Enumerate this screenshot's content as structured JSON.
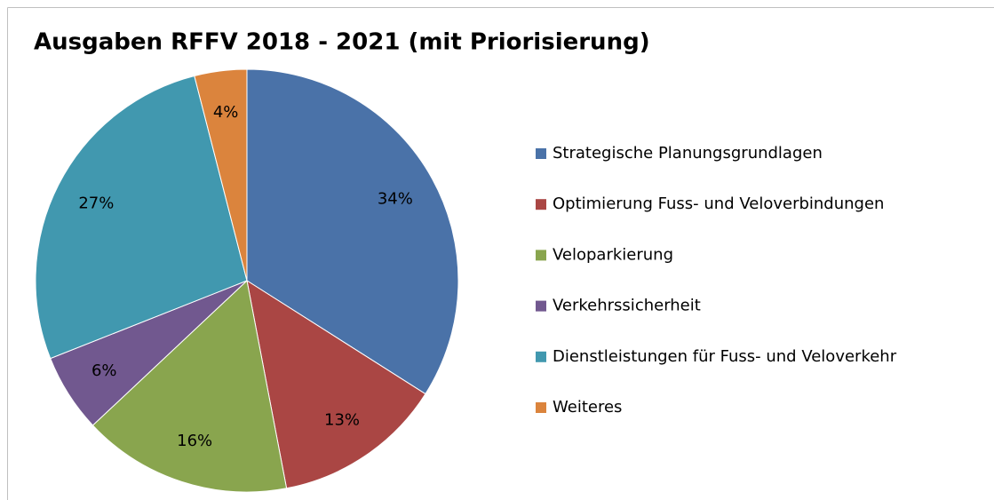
{
  "chart_data": {
    "type": "pie",
    "title": "Ausgaben RFFV 2018 - 2021 (mit Priorisierung)",
    "categories": [
      "Strategische Planungsgrundlagen",
      "Optimierung Fuss- und Veloverbindungen",
      "Veloparkierung",
      "Verkehrssicherheit",
      "Dienstleistungen für Fuss- und Veloverkehr",
      "Weiteres"
    ],
    "values": [
      34,
      13,
      16,
      6,
      27,
      4
    ],
    "value_labels": [
      "34%",
      "13%",
      "16%",
      "6%",
      "27%",
      "4%"
    ],
    "colors": [
      "#4a72a8",
      "#aa4644",
      "#89a54e",
      "#71588f",
      "#4198af",
      "#db843d"
    ],
    "legend": "right"
  }
}
